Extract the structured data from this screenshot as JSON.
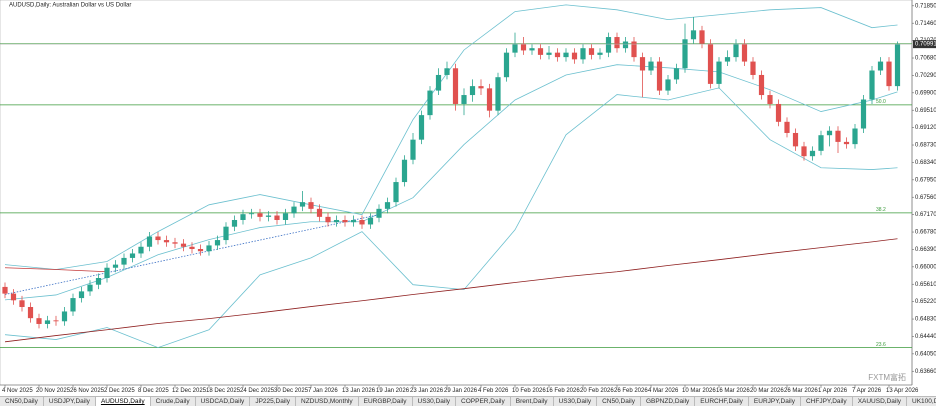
{
  "chart_data": {
    "type": "candlestick",
    "title": "AUDUSD,Daily: Australian Dollar vs US Dollar",
    "watermark": "FXTM富拓",
    "up_color": "#2aa58f",
    "down_color": "#e0514f",
    "ylim": [
      0.6324,
      0.7198
    ],
    "yticks": [
      {
        "value": 0.7185,
        "label": "0.71850"
      },
      {
        "value": 0.7146,
        "label": "0.71460"
      },
      {
        "value": 0.7107,
        "label": "0.71070"
      },
      {
        "value": 0.7068,
        "label": "0.70680"
      },
      {
        "value": 0.7029,
        "label": "0.70290"
      },
      {
        "value": 0.699,
        "label": "0.69900"
      },
      {
        "value": 0.6951,
        "label": "0.69510"
      },
      {
        "value": 0.6912,
        "label": "0.69120"
      },
      {
        "value": 0.6873,
        "label": "0.68730"
      },
      {
        "value": 0.6834,
        "label": "0.68340"
      },
      {
        "value": 0.6795,
        "label": "0.67950"
      },
      {
        "value": 0.6756,
        "label": "0.67560"
      },
      {
        "value": 0.6717,
        "label": "0.67170"
      },
      {
        "value": 0.6678,
        "label": "0.66780"
      },
      {
        "value": 0.6639,
        "label": "0.66390"
      },
      {
        "value": 0.66,
        "label": "0.66000"
      },
      {
        "value": 0.6561,
        "label": "0.65610"
      },
      {
        "value": 0.6522,
        "label": "0.65220"
      },
      {
        "value": 0.6483,
        "label": "0.64830"
      },
      {
        "value": 0.6444,
        "label": "0.64440"
      },
      {
        "value": 0.6405,
        "label": "0.64050"
      },
      {
        "value": 0.6366,
        "label": "0.63660"
      }
    ],
    "last_price": {
      "value": 0.70991,
      "label": "0.70991"
    },
    "xticks": [
      {
        "value": 0,
        "label": "4 Nov 2025"
      },
      {
        "value": 4,
        "label": "20 Nov 2025"
      },
      {
        "value": 8,
        "label": "26 Nov 2025"
      },
      {
        "value": 12,
        "label": "2 Dec 2025"
      },
      {
        "value": 16,
        "label": "8 Dec 2025"
      },
      {
        "value": 20,
        "label": "12 Dec 2025"
      },
      {
        "value": 24,
        "label": "18 Dec 2025"
      },
      {
        "value": 28,
        "label": "24 Dec 2025"
      },
      {
        "value": 32,
        "label": "30 Dec 2025"
      },
      {
        "value": 36,
        "label": "7 Jan 2026"
      },
      {
        "value": 40,
        "label": "13 Jan 2026"
      },
      {
        "value": 44,
        "label": "19 Jan 2026"
      },
      {
        "value": 48,
        "label": "23 Jan 2026"
      },
      {
        "value": 52,
        "label": "29 Jan 2026"
      },
      {
        "value": 56,
        "label": "4 Feb 2026"
      },
      {
        "value": 60,
        "label": "10 Feb 2026"
      },
      {
        "value": 64,
        "label": "16 Feb 2026"
      },
      {
        "value": 68,
        "label": "20 Feb 2026"
      },
      {
        "value": 72,
        "label": "26 Feb 2026"
      },
      {
        "value": 76,
        "label": "4 Mar 2026"
      },
      {
        "value": 80,
        "label": "10 Mar 2026"
      },
      {
        "value": 84,
        "label": "16 Mar 2026"
      },
      {
        "value": 88,
        "label": "20 Mar 2026"
      },
      {
        "value": 92,
        "label": "26 Mar 2026"
      },
      {
        "value": 96,
        "label": "1 Apr 2026"
      },
      {
        "value": 100,
        "label": "7 Apr 2026"
      },
      {
        "value": 104,
        "label": "13 Apr 2026"
      }
    ],
    "open": [
      0.6555,
      0.654,
      0.6525,
      0.651,
      0.6485,
      0.6472,
      0.648,
      0.6478,
      0.65,
      0.653,
      0.6545,
      0.656,
      0.6575,
      0.6598,
      0.6605,
      0.662,
      0.663,
      0.6645,
      0.6668,
      0.666,
      0.6655,
      0.6652,
      0.6645,
      0.664,
      0.6635,
      0.6648,
      0.666,
      0.669,
      0.6705,
      0.6718,
      0.672,
      0.6712,
      0.6715,
      0.6705,
      0.672,
      0.6735,
      0.6745,
      0.673,
      0.6712,
      0.67,
      0.6705,
      0.67,
      0.6705,
      0.6695,
      0.671,
      0.673,
      0.6745,
      0.679,
      0.684,
      0.6885,
      0.694,
      0.6995,
      0.703,
      0.7045,
      0.6965,
      0.6985,
      0.7005,
      0.7,
      0.695,
      0.7025,
      0.708,
      0.71,
      0.7085,
      0.709,
      0.7075,
      0.708,
      0.707,
      0.708,
      0.7065,
      0.709,
      0.7075,
      0.708,
      0.7115,
      0.709,
      0.7105,
      0.707,
      0.704,
      0.706,
      0.6995,
      0.702,
      0.7045,
      0.711,
      0.713,
      0.71,
      0.701,
      0.706,
      0.707,
      0.71,
      0.706,
      0.703,
      0.6985,
      0.6965,
      0.6925,
      0.69,
      0.687,
      0.6848,
      0.686,
      0.6895,
      0.6905,
      0.688,
      0.6875,
      0.691,
      0.6975,
      0.704,
      0.706,
      0.7005
    ],
    "high": [
      0.6565,
      0.655,
      0.6535,
      0.652,
      0.6495,
      0.649,
      0.649,
      0.651,
      0.654,
      0.6555,
      0.657,
      0.6585,
      0.6608,
      0.6615,
      0.663,
      0.664,
      0.6655,
      0.6678,
      0.6678,
      0.667,
      0.6665,
      0.6662,
      0.6655,
      0.665,
      0.6658,
      0.667,
      0.67,
      0.6715,
      0.6728,
      0.673,
      0.673,
      0.6725,
      0.6725,
      0.673,
      0.6745,
      0.677,
      0.6755,
      0.674,
      0.6722,
      0.6715,
      0.6715,
      0.6715,
      0.6715,
      0.672,
      0.674,
      0.6755,
      0.68,
      0.685,
      0.69,
      0.695,
      0.7005,
      0.7045,
      0.706,
      0.7055,
      0.7,
      0.702,
      0.702,
      0.701,
      0.7035,
      0.709,
      0.7125,
      0.7115,
      0.71,
      0.71,
      0.7095,
      0.709,
      0.709,
      0.709,
      0.71,
      0.71,
      0.709,
      0.7125,
      0.7125,
      0.7115,
      0.7115,
      0.708,
      0.707,
      0.707,
      0.703,
      0.7055,
      0.7145,
      0.716,
      0.714,
      0.711,
      0.707,
      0.7085,
      0.711,
      0.711,
      0.707,
      0.704,
      0.6995,
      0.6975,
      0.6935,
      0.691,
      0.688,
      0.687,
      0.6905,
      0.6915,
      0.6915,
      0.689,
      0.692,
      0.6985,
      0.705,
      0.707,
      0.707,
      0.7105
    ],
    "low": [
      0.653,
      0.6515,
      0.65,
      0.6475,
      0.6462,
      0.6462,
      0.6468,
      0.6468,
      0.649,
      0.652,
      0.6535,
      0.655,
      0.6565,
      0.6588,
      0.6595,
      0.661,
      0.662,
      0.6635,
      0.665,
      0.6645,
      0.6642,
      0.6635,
      0.663,
      0.6625,
      0.6625,
      0.6638,
      0.665,
      0.668,
      0.6695,
      0.6708,
      0.6702,
      0.6702,
      0.6695,
      0.6695,
      0.671,
      0.6725,
      0.672,
      0.6702,
      0.669,
      0.669,
      0.669,
      0.669,
      0.6685,
      0.6685,
      0.67,
      0.672,
      0.6735,
      0.678,
      0.683,
      0.6875,
      0.693,
      0.6985,
      0.702,
      0.695,
      0.694,
      0.697,
      0.6985,
      0.6935,
      0.694,
      0.7015,
      0.707,
      0.7075,
      0.7075,
      0.7065,
      0.7065,
      0.706,
      0.706,
      0.7055,
      0.7055,
      0.7065,
      0.7065,
      0.707,
      0.708,
      0.708,
      0.706,
      0.698,
      0.703,
      0.6985,
      0.6985,
      0.701,
      0.7035,
      0.71,
      0.709,
      0.7,
      0.7,
      0.705,
      0.706,
      0.705,
      0.702,
      0.6975,
      0.6955,
      0.6915,
      0.689,
      0.686,
      0.6838,
      0.6838,
      0.685,
      0.687,
      0.6855,
      0.6865,
      0.6865,
      0.69,
      0.6965,
      0.703,
      0.6995,
      0.6995
    ],
    "close": [
      0.654,
      0.6525,
      0.651,
      0.6485,
      0.6472,
      0.648,
      0.6478,
      0.65,
      0.653,
      0.6545,
      0.656,
      0.6575,
      0.6598,
      0.6605,
      0.662,
      0.663,
      0.6645,
      0.6668,
      0.666,
      0.6655,
      0.6652,
      0.6645,
      0.664,
      0.6635,
      0.6648,
      0.666,
      0.669,
      0.6705,
      0.6718,
      0.672,
      0.6712,
      0.6715,
      0.6705,
      0.672,
      0.6735,
      0.6745,
      0.673,
      0.6712,
      0.67,
      0.6705,
      0.67,
      0.6705,
      0.6695,
      0.671,
      0.673,
      0.6745,
      0.679,
      0.684,
      0.6885,
      0.694,
      0.6995,
      0.703,
      0.7045,
      0.6965,
      0.6985,
      0.7005,
      0.7,
      0.695,
      0.7025,
      0.708,
      0.71,
      0.7085,
      0.709,
      0.7075,
      0.708,
      0.707,
      0.708,
      0.7065,
      0.709,
      0.7075,
      0.708,
      0.7115,
      0.709,
      0.7105,
      0.707,
      0.704,
      0.706,
      0.6995,
      0.702,
      0.7045,
      0.711,
      0.713,
      0.71,
      0.701,
      0.706,
      0.707,
      0.71,
      0.706,
      0.703,
      0.6985,
      0.6965,
      0.6925,
      0.69,
      0.687,
      0.6848,
      0.686,
      0.6895,
      0.6905,
      0.688,
      0.6875,
      0.691,
      0.6975,
      0.704,
      0.706,
      0.7005,
      0.70991
    ],
    "indicators": [
      {
        "color": "#6cc0cf",
        "x": [
          0,
          6,
          12,
          18,
          24,
          30,
          36,
          42,
          48,
          54,
          60,
          66,
          72,
          78,
          84,
          90,
          96,
          102,
          105
        ],
        "values": [
          0.6605,
          0.6594,
          0.6612,
          0.6679,
          0.6739,
          0.6762,
          0.6739,
          0.6717,
          0.693,
          0.7086,
          0.7172,
          0.7187,
          0.7176,
          0.7154,
          0.7165,
          0.7176,
          0.7181,
          0.7136,
          0.7142
        ]
      },
      {
        "color": "#6cc0cf",
        "x": [
          0,
          6,
          12,
          18,
          24,
          30,
          36,
          42,
          48,
          54,
          60,
          66,
          72,
          78,
          84,
          90,
          96,
          102,
          105
        ],
        "values": [
          0.6526,
          0.6537,
          0.6576,
          0.6627,
          0.6661,
          0.6688,
          0.6701,
          0.6701,
          0.6755,
          0.6874,
          0.6974,
          0.703,
          0.7053,
          0.7046,
          0.7037,
          0.6997,
          0.6948,
          0.6974,
          0.6992
        ]
      },
      {
        "color": "#6cc0cf",
        "x": [
          0,
          6,
          12,
          18,
          24,
          30,
          36,
          42,
          48,
          54,
          60,
          66,
          72,
          78,
          84,
          90,
          96,
          102,
          105
        ],
        "values": [
          0.6448,
          0.6437,
          0.6464,
          0.6419,
          0.6459,
          0.6582,
          0.662,
          0.6679,
          0.656,
          0.6549,
          0.6683,
          0.6896,
          0.6986,
          0.6974,
          0.7001,
          0.6885,
          0.6822,
          0.6818,
          0.6822
        ]
      },
      {
        "color": "#8e1f1f",
        "x": [
          0,
          6,
          12,
          18,
          24,
          30,
          36,
          42,
          48,
          54,
          60,
          66,
          72,
          78,
          84,
          90,
          96,
          102,
          105
        ],
        "values": [
          0.6432,
          0.6446,
          0.6459,
          0.6473,
          0.6484,
          0.6497,
          0.6511,
          0.6524,
          0.6538,
          0.6551,
          0.6565,
          0.6578,
          0.6589,
          0.6603,
          0.6616,
          0.663,
          0.6643,
          0.6656,
          0.6663
        ]
      },
      {
        "color": "#c43a3a",
        "x": [
          0,
          6,
          12
        ],
        "values": [
          0.6598,
          0.6594,
          0.6589
        ]
      }
    ],
    "trendline": {
      "color": "#3a6fc4",
      "x": [
        0,
        44
      ],
      "values": [
        0.6538,
        0.6717
      ]
    },
    "fib_color": "#3a9a3a",
    "fib_levels": [
      0.71,
      0.6963,
      0.6721,
      0.6419
    ],
    "fib_labels": [
      null,
      "50.0",
      "38.2",
      "23.6"
    ],
    "tabs": [
      "CN50,Daily",
      "USDJPY,Daily",
      "AUDUSD,Daily",
      "Crude,Daily",
      "USDCAD,Daily",
      "JP225,Daily",
      "NZDUSD,Monthly",
      "EURGBP,Daily",
      "US30,Daily",
      "COPPER,Daily",
      "Brent,Daily",
      "US30,Daily",
      "CN50,Daily",
      "GBPNZD,Daily",
      "EURCHF,Daily",
      "EURJPY,Daily",
      "CHFJPY,Daily",
      "XAUUSD,Daily",
      "UK100,Daily"
    ],
    "active_tab": 2
  }
}
